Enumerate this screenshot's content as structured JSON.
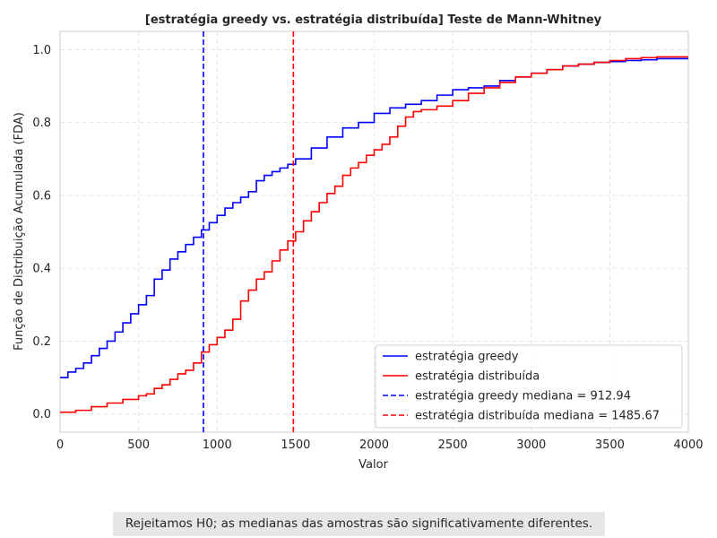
{
  "chart_data": {
    "type": "line",
    "title": "[estratégia greedy vs. estratégia distribuída] Teste de Mann-Whitney",
    "xlabel": "Valor",
    "ylabel": "Função de Distribuição Acumulada (FDA)",
    "xlim": [
      0,
      4000
    ],
    "ylim": [
      -0.05,
      1.05
    ],
    "xticks": [
      0,
      500,
      1000,
      1500,
      2000,
      2500,
      3000,
      3500,
      4000
    ],
    "xtick_labels": [
      "0",
      "500",
      "1000",
      "1500",
      "2000",
      "2500",
      "3000",
      "3500",
      "4000"
    ],
    "yticks": [
      0.0,
      0.2,
      0.4,
      0.6,
      0.8,
      1.0
    ],
    "ytick_labels": [
      "0.0",
      "0.2",
      "0.4",
      "0.6",
      "0.8",
      "1.0"
    ],
    "grid": true,
    "legend_position": "lower-right",
    "series": [
      {
        "name": "estratégia greedy",
        "color": "#0000ff",
        "x": [
          0,
          50,
          100,
          150,
          200,
          250,
          300,
          350,
          400,
          450,
          500,
          550,
          600,
          650,
          700,
          750,
          800,
          850,
          900,
          950,
          1000,
          1050,
          1100,
          1150,
          1200,
          1250,
          1300,
          1350,
          1400,
          1450,
          1500,
          1600,
          1700,
          1800,
          1900,
          2000,
          2100,
          2200,
          2300,
          2400,
          2500,
          2600,
          2700,
          2800,
          2900,
          3000,
          3100,
          3200,
          3300,
          3400,
          3500,
          3600,
          3700,
          3800,
          3900,
          4000
        ],
        "y": [
          0.1,
          0.115,
          0.125,
          0.14,
          0.16,
          0.18,
          0.2,
          0.225,
          0.25,
          0.275,
          0.3,
          0.325,
          0.37,
          0.395,
          0.425,
          0.445,
          0.465,
          0.485,
          0.505,
          0.525,
          0.545,
          0.565,
          0.58,
          0.595,
          0.61,
          0.64,
          0.655,
          0.665,
          0.675,
          0.685,
          0.7,
          0.73,
          0.76,
          0.785,
          0.8,
          0.825,
          0.84,
          0.85,
          0.86,
          0.875,
          0.89,
          0.895,
          0.9,
          0.915,
          0.925,
          0.935,
          0.945,
          0.955,
          0.96,
          0.965,
          0.967,
          0.97,
          0.972,
          0.975,
          0.975,
          0.975
        ]
      },
      {
        "name": "estratégia distribuída",
        "color": "#ff0000",
        "x": [
          0,
          100,
          200,
          300,
          400,
          500,
          550,
          600,
          650,
          700,
          750,
          800,
          850,
          900,
          950,
          1000,
          1050,
          1100,
          1150,
          1200,
          1250,
          1300,
          1350,
          1400,
          1450,
          1500,
          1550,
          1600,
          1650,
          1700,
          1750,
          1800,
          1850,
          1900,
          1950,
          2000,
          2050,
          2100,
          2150,
          2200,
          2250,
          2300,
          2400,
          2500,
          2600,
          2700,
          2800,
          2900,
          3000,
          3100,
          3200,
          3300,
          3400,
          3500,
          3600,
          3700,
          3800,
          3900,
          4000
        ],
        "y": [
          0.005,
          0.01,
          0.02,
          0.03,
          0.04,
          0.05,
          0.055,
          0.07,
          0.08,
          0.095,
          0.11,
          0.12,
          0.14,
          0.17,
          0.19,
          0.21,
          0.23,
          0.26,
          0.31,
          0.34,
          0.37,
          0.39,
          0.42,
          0.45,
          0.475,
          0.5,
          0.53,
          0.555,
          0.58,
          0.605,
          0.625,
          0.655,
          0.675,
          0.69,
          0.71,
          0.725,
          0.74,
          0.76,
          0.79,
          0.815,
          0.83,
          0.835,
          0.845,
          0.86,
          0.88,
          0.895,
          0.91,
          0.925,
          0.935,
          0.945,
          0.955,
          0.96,
          0.965,
          0.97,
          0.975,
          0.978,
          0.98,
          0.98,
          0.98
        ]
      }
    ],
    "vlines": [
      {
        "label": "estratégia greedy mediana = 912.94",
        "x": 912.94,
        "color": "#0000ff",
        "style": "dashed"
      },
      {
        "label": "estratégia distribuída mediana = 1485.67",
        "x": 1485.67,
        "color": "#ff0000",
        "style": "dashed"
      }
    ]
  },
  "annotation": {
    "text": "Rejeitamos H0; as medianas das amostras são significativamente diferentes."
  }
}
